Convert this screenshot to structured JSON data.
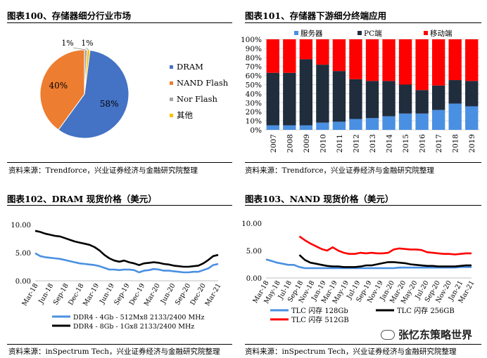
{
  "chart_data": [
    {
      "type": "pie",
      "title": "图表100、存储器细分行业市场",
      "source": "资料来源：Trendforce，兴业证券经济与金融研究院整理",
      "slices": [
        {
          "label": "DRAM",
          "value": 58,
          "display": "58%",
          "color": "#4472C4"
        },
        {
          "label": "NAND Flash",
          "value": 40,
          "display": "40%",
          "color": "#ED7D31"
        },
        {
          "label": "Nor Flash",
          "value": 1,
          "display": "1%",
          "color": "#A5A5A5"
        },
        {
          "label": "其他",
          "value": 1,
          "display": "1%",
          "color": "#FFC000"
        }
      ]
    },
    {
      "type": "bar",
      "stacked": true,
      "title": "图表101、存储器下游细分终端应用",
      "source": "资料来源：Trendforce，兴业证券经济与金融研究院整理",
      "categories": [
        "2007",
        "2008",
        "2009",
        "2010",
        "2011",
        "2012",
        "2013",
        "2014",
        "2015",
        "2016",
        "2017",
        "2018",
        "2019"
      ],
      "ylim": [
        0,
        100
      ],
      "yticks": [
        "0%",
        "10%",
        "20%",
        "30%",
        "40%",
        "50%",
        "60%",
        "70%",
        "80%",
        "90%",
        "100%"
      ],
      "series": [
        {
          "name": "服务器",
          "color": "#4A90E2",
          "values": [
            5,
            5,
            5,
            8,
            9,
            12,
            13,
            15,
            18,
            18,
            22,
            29,
            26
          ]
        },
        {
          "name": "PC端",
          "color": "#1F2D3D",
          "values": [
            58,
            58,
            73,
            64,
            56,
            44,
            41,
            39,
            32,
            26,
            27,
            26,
            28
          ]
        },
        {
          "name": "移动端",
          "color": "#FF0000",
          "values": [
            37,
            37,
            22,
            28,
            35,
            44,
            46,
            46,
            50,
            56,
            51,
            45,
            46
          ]
        }
      ]
    },
    {
      "type": "line",
      "title": "图表102、DRAM 现货价格（美元）",
      "source": "资料来源：inSpectrum Tech，兴业证券经济与金融研究院整理",
      "ylim": [
        0,
        10
      ],
      "yticks": [
        "0.00",
        "5.00",
        "10.00"
      ],
      "x_ticks": [
        "Mar-18",
        "Jun-18",
        "Sep-18",
        "Dec-18",
        "Mar-19",
        "Jun-19",
        "Sep-19",
        "Dec-19",
        "Mar-20",
        "Jun-20",
        "Sep-20",
        "Dec-20",
        "Mar-21"
      ],
      "series": [
        {
          "name": "DDR4 - 4Gb - 512Mx8 2133/2400 MHz",
          "color": "#4A90E2",
          "values": [
            4.9,
            4.4,
            4.2,
            4.1,
            4.0,
            3.9,
            3.7,
            3.5,
            3.3,
            3.1,
            3.0,
            2.9,
            2.8,
            2.6,
            2.3,
            2.0,
            2.0,
            1.9,
            2.0,
            2.0,
            1.9,
            1.5,
            1.8,
            1.9,
            2.1,
            2.0,
            1.8,
            1.8,
            1.7,
            1.6,
            1.5,
            1.5,
            1.6,
            1.6,
            1.9,
            2.2,
            2.8,
            3.0
          ]
        },
        {
          "name": "DDR4 - 8Gb - 1Gx8 2133/2400 MHz",
          "color": "#000000",
          "values": [
            8.9,
            8.7,
            8.4,
            8.2,
            8.0,
            7.9,
            7.6,
            7.3,
            7.0,
            6.8,
            6.6,
            6.4,
            6.0,
            5.4,
            4.6,
            4.0,
            3.6,
            3.4,
            3.6,
            3.3,
            3.1,
            2.8,
            3.1,
            3.2,
            3.3,
            3.2,
            3.0,
            2.9,
            2.7,
            2.6,
            2.5,
            2.5,
            2.6,
            2.7,
            3.1,
            3.7,
            4.4,
            4.6
          ]
        }
      ]
    },
    {
      "type": "line",
      "title": "图表103、NAND 现货价格（美元）",
      "source": "资料来源：inSpectrum Tech，兴业证券经济与金融研究院整理",
      "ylim": [
        0,
        10
      ],
      "yticks": [
        "0.00",
        "5.00",
        "10.00"
      ],
      "x_ticks": [
        "Mar-18",
        "Jul-18",
        "Nov-18",
        "Mar-19",
        "Jul-19",
        "Nov-19",
        "Mar-20",
        "Jul-20",
        "Nov-20",
        "Mar-21"
      ],
      "x_ticks_full": [
        "Mar-18",
        "May-18",
        "Jul-18",
        "Sep-18",
        "Nov-18",
        "Jan-19",
        "Mar-19",
        "May-19",
        "Jul-19",
        "Sep-19",
        "Nov-19",
        "Jan-20",
        "Mar-20",
        "May-20",
        "Jul-20",
        "Sep-20",
        "Nov-20",
        "Jan-21",
        "Mar-21"
      ],
      "series": [
        {
          "name": "TLC 闪存 128Gb",
          "color": "#4A90E2",
          "values": [
            3.4,
            3.1,
            2.8,
            2.6,
            2.4,
            2.4,
            2.0,
            1.8,
            1.8,
            1.8,
            1.8,
            1.8,
            1.8,
            1.8,
            1.8,
            1.8,
            1.8,
            1.8,
            1.8,
            1.8,
            1.8,
            1.8,
            1.8,
            1.8,
            1.9,
            1.9,
            1.9,
            1.9,
            1.9,
            1.9,
            1.9,
            1.9,
            1.9,
            1.9,
            1.9,
            2.0,
            2.0,
            2.0
          ]
        },
        {
          "name": "TLC 闪存 256GB",
          "color": "#000000",
          "values": [
            null,
            null,
            null,
            null,
            null,
            null,
            4.2,
            3.3,
            2.8,
            2.6,
            2.4,
            2.2,
            2.1,
            2.1,
            2.0,
            2.0,
            2.0,
            2.1,
            2.3,
            2.3,
            2.5,
            2.7,
            2.9,
            2.9,
            2.8,
            2.7,
            2.5,
            2.4,
            2.3,
            2.2,
            2.2,
            2.1,
            2.1,
            2.1,
            2.1,
            2.2,
            2.3,
            2.3
          ]
        },
        {
          "name": "TLC 闪存 512GB",
          "color": "#FF0000",
          "values": [
            null,
            null,
            null,
            null,
            null,
            null,
            7.6,
            6.9,
            6.3,
            5.8,
            5.3,
            5.0,
            5.6,
            5.0,
            4.6,
            4.4,
            4.4,
            4.6,
            4.5,
            4.6,
            4.5,
            4.5,
            4.6,
            5.2,
            5.4,
            5.3,
            5.2,
            5.2,
            5.1,
            4.7,
            4.6,
            4.5,
            4.4,
            4.4,
            4.3,
            4.4,
            4.5,
            4.5
          ]
        }
      ]
    }
  ],
  "watermark": "张忆东策略世界"
}
